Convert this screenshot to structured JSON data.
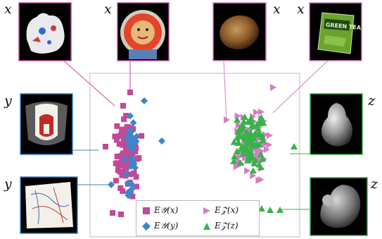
{
  "labels": {
    "x_top_1": "x",
    "x_top_2": "x",
    "x_top_3": "x",
    "x_top_4": "x",
    "y_left_1": "y",
    "y_left_2": "y",
    "z_right_1": "z",
    "z_right_2": "z"
  },
  "legend": [
    {
      "text": "E𝒴(x)",
      "color": "#c2489b",
      "shape": "square"
    },
    {
      "text": "E𝒵(x)",
      "color": "#d27fc1",
      "shape": "triangle-right"
    },
    {
      "text": "E𝒴(y)",
      "color": "#3d86c8",
      "shape": "diamond"
    },
    {
      "text": "E𝒵(z)",
      "color": "#37b34a",
      "shape": "triangle-up"
    }
  ],
  "colors": {
    "pink_square": "#c2489b",
    "light_triangle": "#d27fc1",
    "blue_diamond": "#3d86c8",
    "green_triangle": "#37b34a",
    "frame_x": "#c2489b",
    "frame_y": "#3d86c8",
    "frame_z": "#37b34a"
  },
  "thumbnails": [
    {
      "name": "ceramic-figurine-image",
      "subject": "ceramic figurine"
    },
    {
      "name": "sun-face-plaque-image",
      "subject": "sun face plaque"
    },
    {
      "name": "potato-image",
      "subject": "potato"
    },
    {
      "name": "green-tea-packet-image",
      "subject": "green tea packet",
      "text": "GREEN TEA"
    },
    {
      "name": "mask-sketch-image",
      "subject": "mask sketch"
    },
    {
      "name": "map-sketch-image",
      "subject": "map sketch"
    },
    {
      "name": "pear-depth-image",
      "subject": "pear shape"
    },
    {
      "name": "squirrel-depth-image",
      "subject": "squirrel shape"
    }
  ]
}
